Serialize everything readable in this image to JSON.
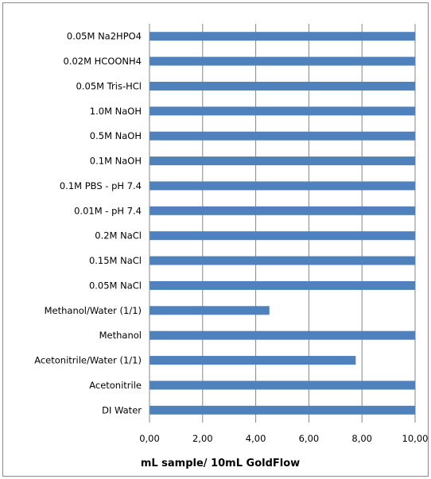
{
  "chart_data": {
    "type": "bar",
    "orientation": "horizontal",
    "categories": [
      "0.05M Na2HPO4",
      "0.02M HCOONH4",
      "0.05M Tris-HCl",
      "1.0M NaOH",
      "0.5M NaOH",
      "0.1M NaOH",
      "0.1M PBS - pH 7.4",
      "0.01M  - pH 7.4",
      "0.2M NaCl",
      "0.15M NaCl",
      "0.05M NaCl",
      "Methanol/Water (1/1)",
      "Methanol",
      "Acetonitrile/Water (1/1)",
      "Acetonitrile",
      "DI Water"
    ],
    "values": [
      10,
      10,
      10,
      10,
      10,
      10,
      10,
      10,
      10,
      10,
      10,
      4.5,
      10,
      7.75,
      10,
      10
    ],
    "xlabel": "mL sample/ 10mL GoldFlow",
    "ylabel": "",
    "xlim": [
      0,
      10
    ],
    "xticks": [
      "0,00",
      "2,00",
      "4,00",
      "6,00",
      "8,00",
      "10,00"
    ],
    "grid": "vertical",
    "legend": "none",
    "bar_color": "#4f81bd",
    "grid_color": "#868686"
  }
}
